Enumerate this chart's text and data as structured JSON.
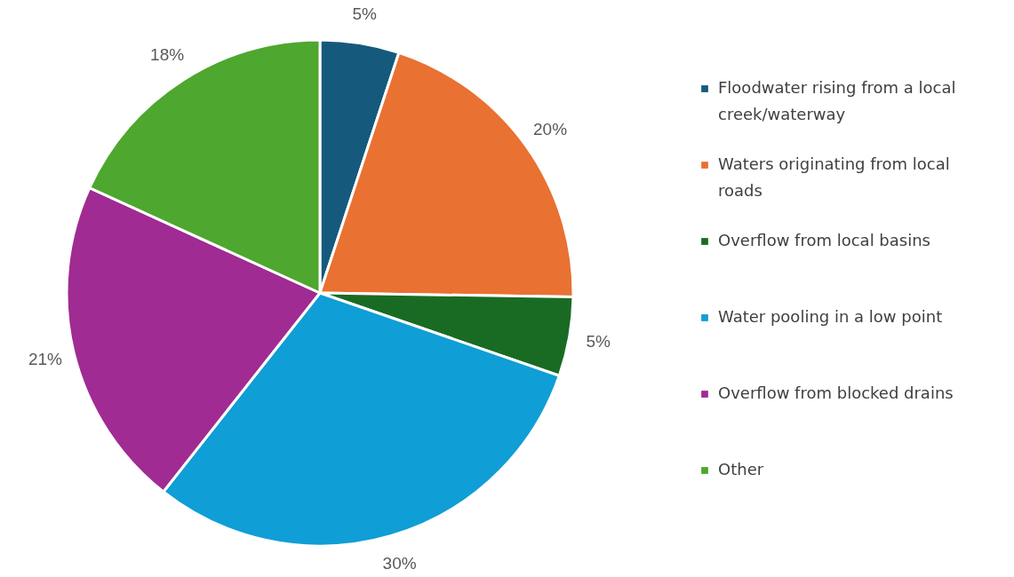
{
  "chart_data": {
    "type": "pie",
    "categories": [
      "Floodwater rising from a local creek/waterway",
      "Waters originating from local roads",
      "Overflow from local basins",
      "Water pooling in a low point",
      "Overflow from blocked drains",
      "Other"
    ],
    "values": [
      5,
      20,
      5,
      30,
      21,
      18
    ],
    "colors": [
      "#155a7c",
      "#e97132",
      "#196b24",
      "#0f9ed5",
      "#a02b93",
      "#4ea72e"
    ],
    "value_labels": [
      "5%",
      "20%",
      "5%",
      "30%",
      "21%",
      "18%"
    ],
    "legend": "right"
  }
}
